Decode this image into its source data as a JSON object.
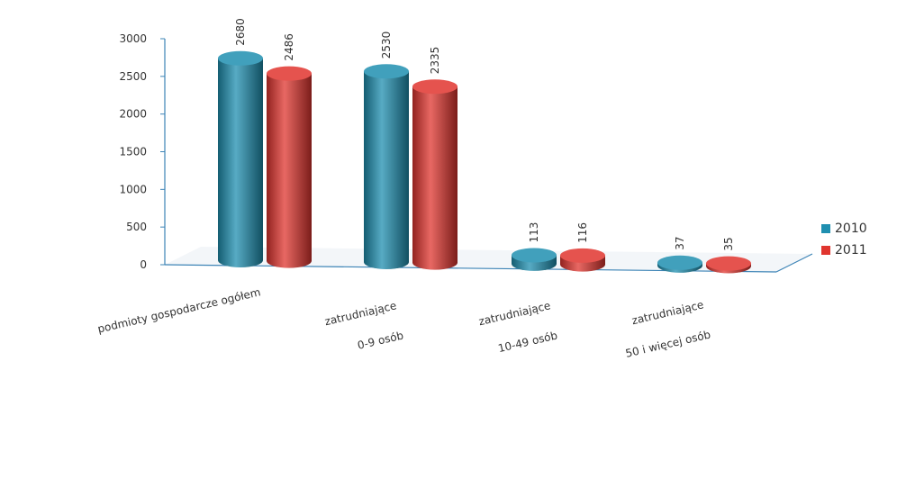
{
  "chart_data": {
    "type": "bar",
    "categories": [
      "podmioty gospodarcze ogółem",
      "zatrudniające 0-9 osób",
      "zatrudniające 10-49 osób",
      "zatrudniające 50 i więcej osób"
    ],
    "category_lines": [
      [
        "podmioty gospodarcze ogółem"
      ],
      [
        "zatrudniające",
        "0-9 osób"
      ],
      [
        "zatrudniające",
        "10-49 osób"
      ],
      [
        "zatrudniające",
        "50 i więcej osób"
      ]
    ],
    "series": [
      {
        "name": "2010",
        "color": "#1f8fb0",
        "values": [
          2680,
          2530,
          113,
          37
        ]
      },
      {
        "name": "2011",
        "color": "#e0352f",
        "values": [
          2486,
          2335,
          116,
          35
        ]
      }
    ],
    "ylim": [
      0,
      3000
    ],
    "yticks": [
      0,
      500,
      1000,
      1500,
      2000,
      2500,
      3000
    ],
    "legend": "right",
    "grid": false,
    "bar_shape": "cylinder"
  }
}
